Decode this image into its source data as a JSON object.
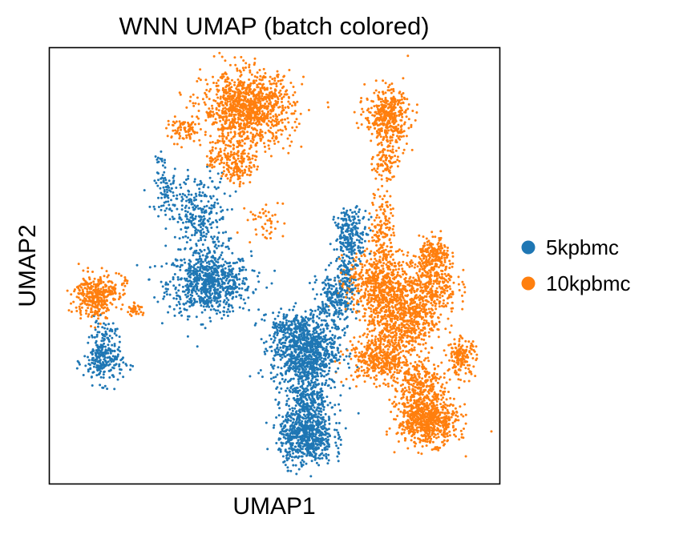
{
  "chart_data": {
    "type": "scatter",
    "title": "WNN UMAP (batch colored)",
    "xlabel": "UMAP1",
    "ylabel": "UMAP2",
    "xlim": [
      0,
      100
    ],
    "ylim": [
      0,
      100
    ],
    "grid": false,
    "ticks": false,
    "legend_position": "right",
    "series": [
      {
        "name": "5kpbmc",
        "color": "#1f77b4",
        "clusters": [
          {
            "cx": 35.5,
            "cy": 46.0,
            "sx": 4.6,
            "sy": 3.6,
            "n": 750
          },
          {
            "cx": 33.0,
            "cy": 61.0,
            "sx": 3.2,
            "sy": 5.0,
            "n": 300
          },
          {
            "cx": 26.0,
            "cy": 67.0,
            "sx": 1.3,
            "sy": 2.0,
            "n": 70
          },
          {
            "cx": 25.0,
            "cy": 74.0,
            "sx": 0.8,
            "sy": 0.9,
            "n": 15
          },
          {
            "cx": 12.0,
            "cy": 28.0,
            "sx": 2.2,
            "sy": 2.5,
            "n": 220
          },
          {
            "cx": 12.0,
            "cy": 34.0,
            "sx": 1.4,
            "sy": 1.8,
            "n": 60
          },
          {
            "cx": 56.5,
            "cy": 31.0,
            "sx": 3.6,
            "sy": 4.2,
            "n": 900
          },
          {
            "cx": 57.0,
            "cy": 11.0,
            "sx": 3.0,
            "sy": 3.4,
            "n": 650
          },
          {
            "cx": 57.5,
            "cy": 20.0,
            "sx": 2.6,
            "sy": 4.2,
            "n": 350
          },
          {
            "cx": 63.5,
            "cy": 42.0,
            "sx": 2.0,
            "sy": 3.5,
            "n": 250
          },
          {
            "cx": 67.0,
            "cy": 57.0,
            "sx": 1.8,
            "sy": 3.0,
            "n": 230
          },
          {
            "cx": 66.0,
            "cy": 49.0,
            "sx": 0.9,
            "sy": 2.6,
            "n": 60
          },
          {
            "cx": 52.0,
            "cy": 36.0,
            "sx": 1.3,
            "sy": 1.5,
            "n": 60
          }
        ]
      },
      {
        "name": "10kpbmc",
        "color": "#ff7f0e",
        "clusters": [
          {
            "cx": 44.0,
            "cy": 86.0,
            "sx": 5.0,
            "sy": 4.2,
            "n": 1100
          },
          {
            "cx": 42.0,
            "cy": 73.5,
            "sx": 1.9,
            "sy": 2.4,
            "n": 150
          },
          {
            "cx": 30.0,
            "cy": 81.0,
            "sx": 1.9,
            "sy": 1.3,
            "n": 80
          },
          {
            "cx": 37.0,
            "cy": 75.0,
            "sx": 1.5,
            "sy": 1.3,
            "n": 40
          },
          {
            "cx": 48.0,
            "cy": 60.0,
            "sx": 2.0,
            "sy": 2.5,
            "n": 45
          },
          {
            "cx": 10.0,
            "cy": 43.0,
            "sx": 2.2,
            "sy": 2.5,
            "n": 320
          },
          {
            "cx": 14.5,
            "cy": 45.0,
            "sx": 1.2,
            "sy": 1.4,
            "n": 50
          },
          {
            "cx": 19.0,
            "cy": 40.0,
            "sx": 0.9,
            "sy": 0.7,
            "n": 35
          },
          {
            "cx": 75.0,
            "cy": 84.0,
            "sx": 2.4,
            "sy": 3.3,
            "n": 420
          },
          {
            "cx": 74.5,
            "cy": 74.0,
            "sx": 1.3,
            "sy": 2.0,
            "n": 80
          },
          {
            "cx": 74.0,
            "cy": 59.0,
            "sx": 1.3,
            "sy": 4.8,
            "n": 140
          },
          {
            "cx": 73.0,
            "cy": 46.0,
            "sx": 3.3,
            "sy": 3.5,
            "n": 500
          },
          {
            "cx": 78.0,
            "cy": 38.0,
            "sx": 4.0,
            "sy": 4.0,
            "n": 650
          },
          {
            "cx": 84.5,
            "cy": 46.0,
            "sx": 3.0,
            "sy": 3.5,
            "n": 350
          },
          {
            "cx": 85.5,
            "cy": 52.5,
            "sx": 1.7,
            "sy": 2.0,
            "n": 180
          },
          {
            "cx": 73.5,
            "cy": 28.5,
            "sx": 3.6,
            "sy": 2.6,
            "n": 400
          },
          {
            "cx": 84.0,
            "cy": 14.5,
            "sx": 3.3,
            "sy": 2.7,
            "n": 650
          },
          {
            "cx": 82.0,
            "cy": 22.0,
            "sx": 2.8,
            "sy": 3.2,
            "n": 300
          },
          {
            "cx": 91.5,
            "cy": 29.0,
            "sx": 1.6,
            "sy": 2.1,
            "n": 160
          }
        ]
      }
    ]
  }
}
